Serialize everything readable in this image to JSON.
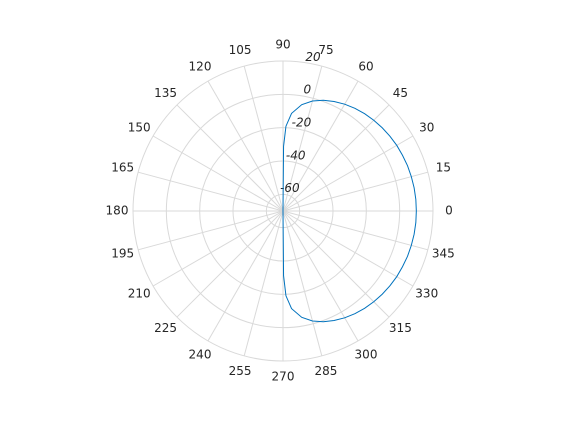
{
  "chart_data": {
    "type": "polar",
    "theta": [
      -90,
      -89.5,
      -88,
      -85,
      -80,
      -75,
      -70,
      -65,
      -60,
      -55,
      -50,
      -45,
      -40,
      -35,
      -30,
      -25,
      -20,
      -15,
      -10,
      -5,
      0,
      5,
      10,
      15,
      20,
      25,
      30,
      35,
      40,
      45,
      50,
      55,
      60,
      65,
      70,
      75,
      80,
      85,
      88,
      89.5,
      90
    ],
    "values": [
      -70,
      -31.2,
      -19.1,
      -11.2,
      -5.2,
      -1.7,
      0.7,
      2.5,
      4.0,
      5.2,
      6.2,
      7.0,
      7.7,
      8.3,
      8.8,
      9.1,
      9.5,
      9.7,
      9.9,
      10.0,
      10.0,
      10.0,
      9.9,
      9.7,
      9.5,
      9.1,
      8.8,
      8.3,
      7.7,
      7.0,
      6.2,
      5.2,
      4.0,
      2.5,
      0.7,
      -1.7,
      -5.2,
      -11.2,
      -19.1,
      -31.2,
      -70
    ],
    "color": "#0072bd",
    "rlim": [
      -70,
      20
    ],
    "rticks": [
      -60,
      -40,
      -20,
      0,
      20
    ],
    "thetaticks": [
      0,
      15,
      30,
      45,
      60,
      75,
      90,
      105,
      120,
      135,
      150,
      165,
      180,
      195,
      210,
      225,
      240,
      255,
      270,
      285,
      300,
      315,
      330,
      345
    ],
    "grid": true
  }
}
